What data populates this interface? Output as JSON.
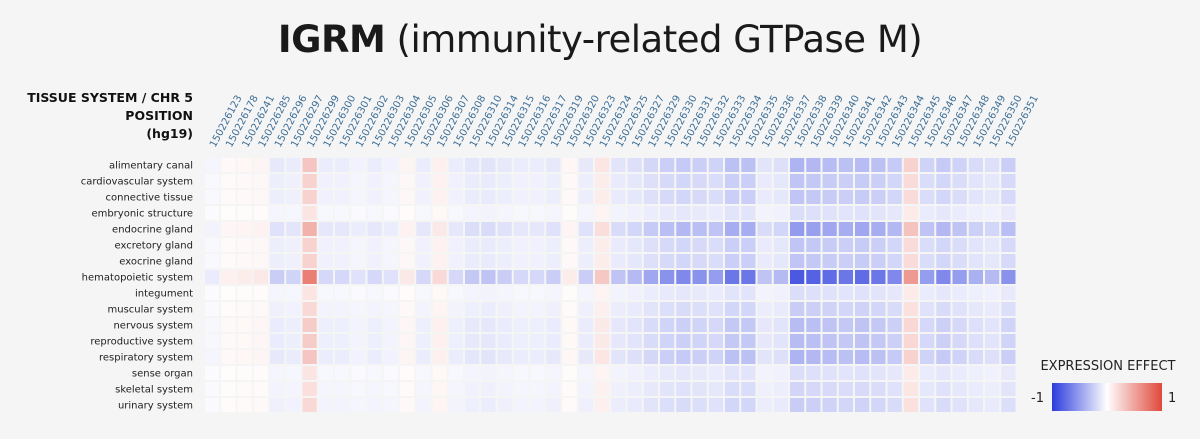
{
  "title": {
    "bold": "IGRM",
    "rest": " (immunity-related GTPase M)"
  },
  "axis_header": {
    "line1": "TISSUE SYSTEM / CHR 5",
    "line2": "POSITION",
    "line3": "(hg19)"
  },
  "legend": {
    "title": "EXPRESSION EFFECT",
    "min_label": "-1",
    "max_label": "1",
    "low_color": "#2b3bdd",
    "mid_color": "#ffffff",
    "high_color": "#e0483a"
  },
  "chart_data": {
    "type": "heatmap",
    "columns": [
      "150226123",
      "150226178",
      "150226241",
      "150226285",
      "150226296",
      "150226297",
      "150226299",
      "150226300",
      "150226301",
      "150226302",
      "150226303",
      "150226304",
      "150226305",
      "150226306",
      "150226307",
      "150226308",
      "150226310",
      "150226314",
      "150226315",
      "150226316",
      "150226317",
      "150226319",
      "150226320",
      "150226323",
      "150226324",
      "150226325",
      "150226327",
      "150226329",
      "150226330",
      "150226331",
      "150226332",
      "150226333",
      "150226334",
      "150226335",
      "150226336",
      "150226337",
      "150226338",
      "150226339",
      "150226340",
      "150226341",
      "150226342",
      "150226343",
      "150226344",
      "150226345",
      "150226346",
      "150226347",
      "150226348",
      "150226349",
      "150226350",
      "150226351"
    ],
    "rows": [
      "alimentary canal",
      "cardiovascular system",
      "connective tissue",
      "embryonic structure",
      "endocrine gland",
      "excretory gland",
      "exocrine gland",
      "hematopoietic system",
      "integument",
      "muscular system",
      "nervous system",
      "reproductive system",
      "respiratory system",
      "sense organ",
      "skeletal system",
      "urinary system"
    ],
    "row_scale": [
      0.45,
      0.35,
      0.35,
      0.2,
      0.6,
      0.35,
      0.35,
      1.0,
      0.2,
      0.3,
      0.4,
      0.4,
      0.45,
      0.2,
      0.25,
      0.3
    ],
    "column_profile": [
      -0.1,
      0.08,
      0.1,
      0.12,
      -0.25,
      -0.22,
      0.7,
      -0.2,
      -0.2,
      -0.15,
      -0.2,
      -0.15,
      0.12,
      -0.2,
      0.2,
      -0.2,
      -0.28,
      -0.3,
      -0.25,
      -0.2,
      -0.2,
      -0.25,
      0.1,
      -0.25,
      0.3,
      -0.3,
      -0.35,
      -0.45,
      -0.55,
      -0.6,
      -0.55,
      -0.5,
      -0.7,
      -0.7,
      -0.3,
      -0.35,
      -0.85,
      -0.8,
      -0.75,
      -0.7,
      -0.75,
      -0.7,
      -0.6,
      0.55,
      -0.5,
      -0.6,
      -0.5,
      -0.4,
      -0.35,
      -0.55
    ],
    "value_range": [
      -1,
      1
    ]
  }
}
